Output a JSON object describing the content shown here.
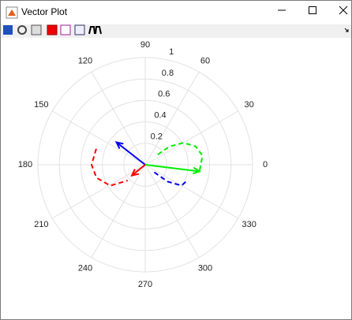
{
  "window": {
    "title": "Vector Plot"
  },
  "chart_data": {
    "type": "polar",
    "rlim": [
      0,
      1
    ],
    "rticks": [
      0.2,
      0.4,
      0.6,
      0.8,
      1
    ],
    "thetaticks": [
      0,
      30,
      60,
      90,
      120,
      150,
      180,
      210,
      240,
      270,
      300,
      330
    ],
    "grid": true,
    "series": [
      {
        "color": "#0000ff",
        "theta": [
          320,
          323,
          330,
          340
        ],
        "r": [
          0.11,
          0.26,
          0.39,
          0.42
        ],
        "arrow_theta": 142,
        "arrow_r": 0.34
      },
      {
        "color": "#00ee00",
        "theta": [
          39,
          37,
          30,
          20,
          9,
          354
        ],
        "r": [
          0.15,
          0.28,
          0.41,
          0.5,
          0.54,
          0.51
        ],
        "arrow_theta": 353,
        "arrow_r": 0.51
      },
      {
        "color": "#ff0000",
        "theta": [
          162,
          180,
          195,
          211,
          222
        ],
        "r": [
          0.48,
          0.5,
          0.47,
          0.38,
          0.22
        ],
        "arrow_theta": 219,
        "arrow_r": 0.16
      }
    ]
  }
}
